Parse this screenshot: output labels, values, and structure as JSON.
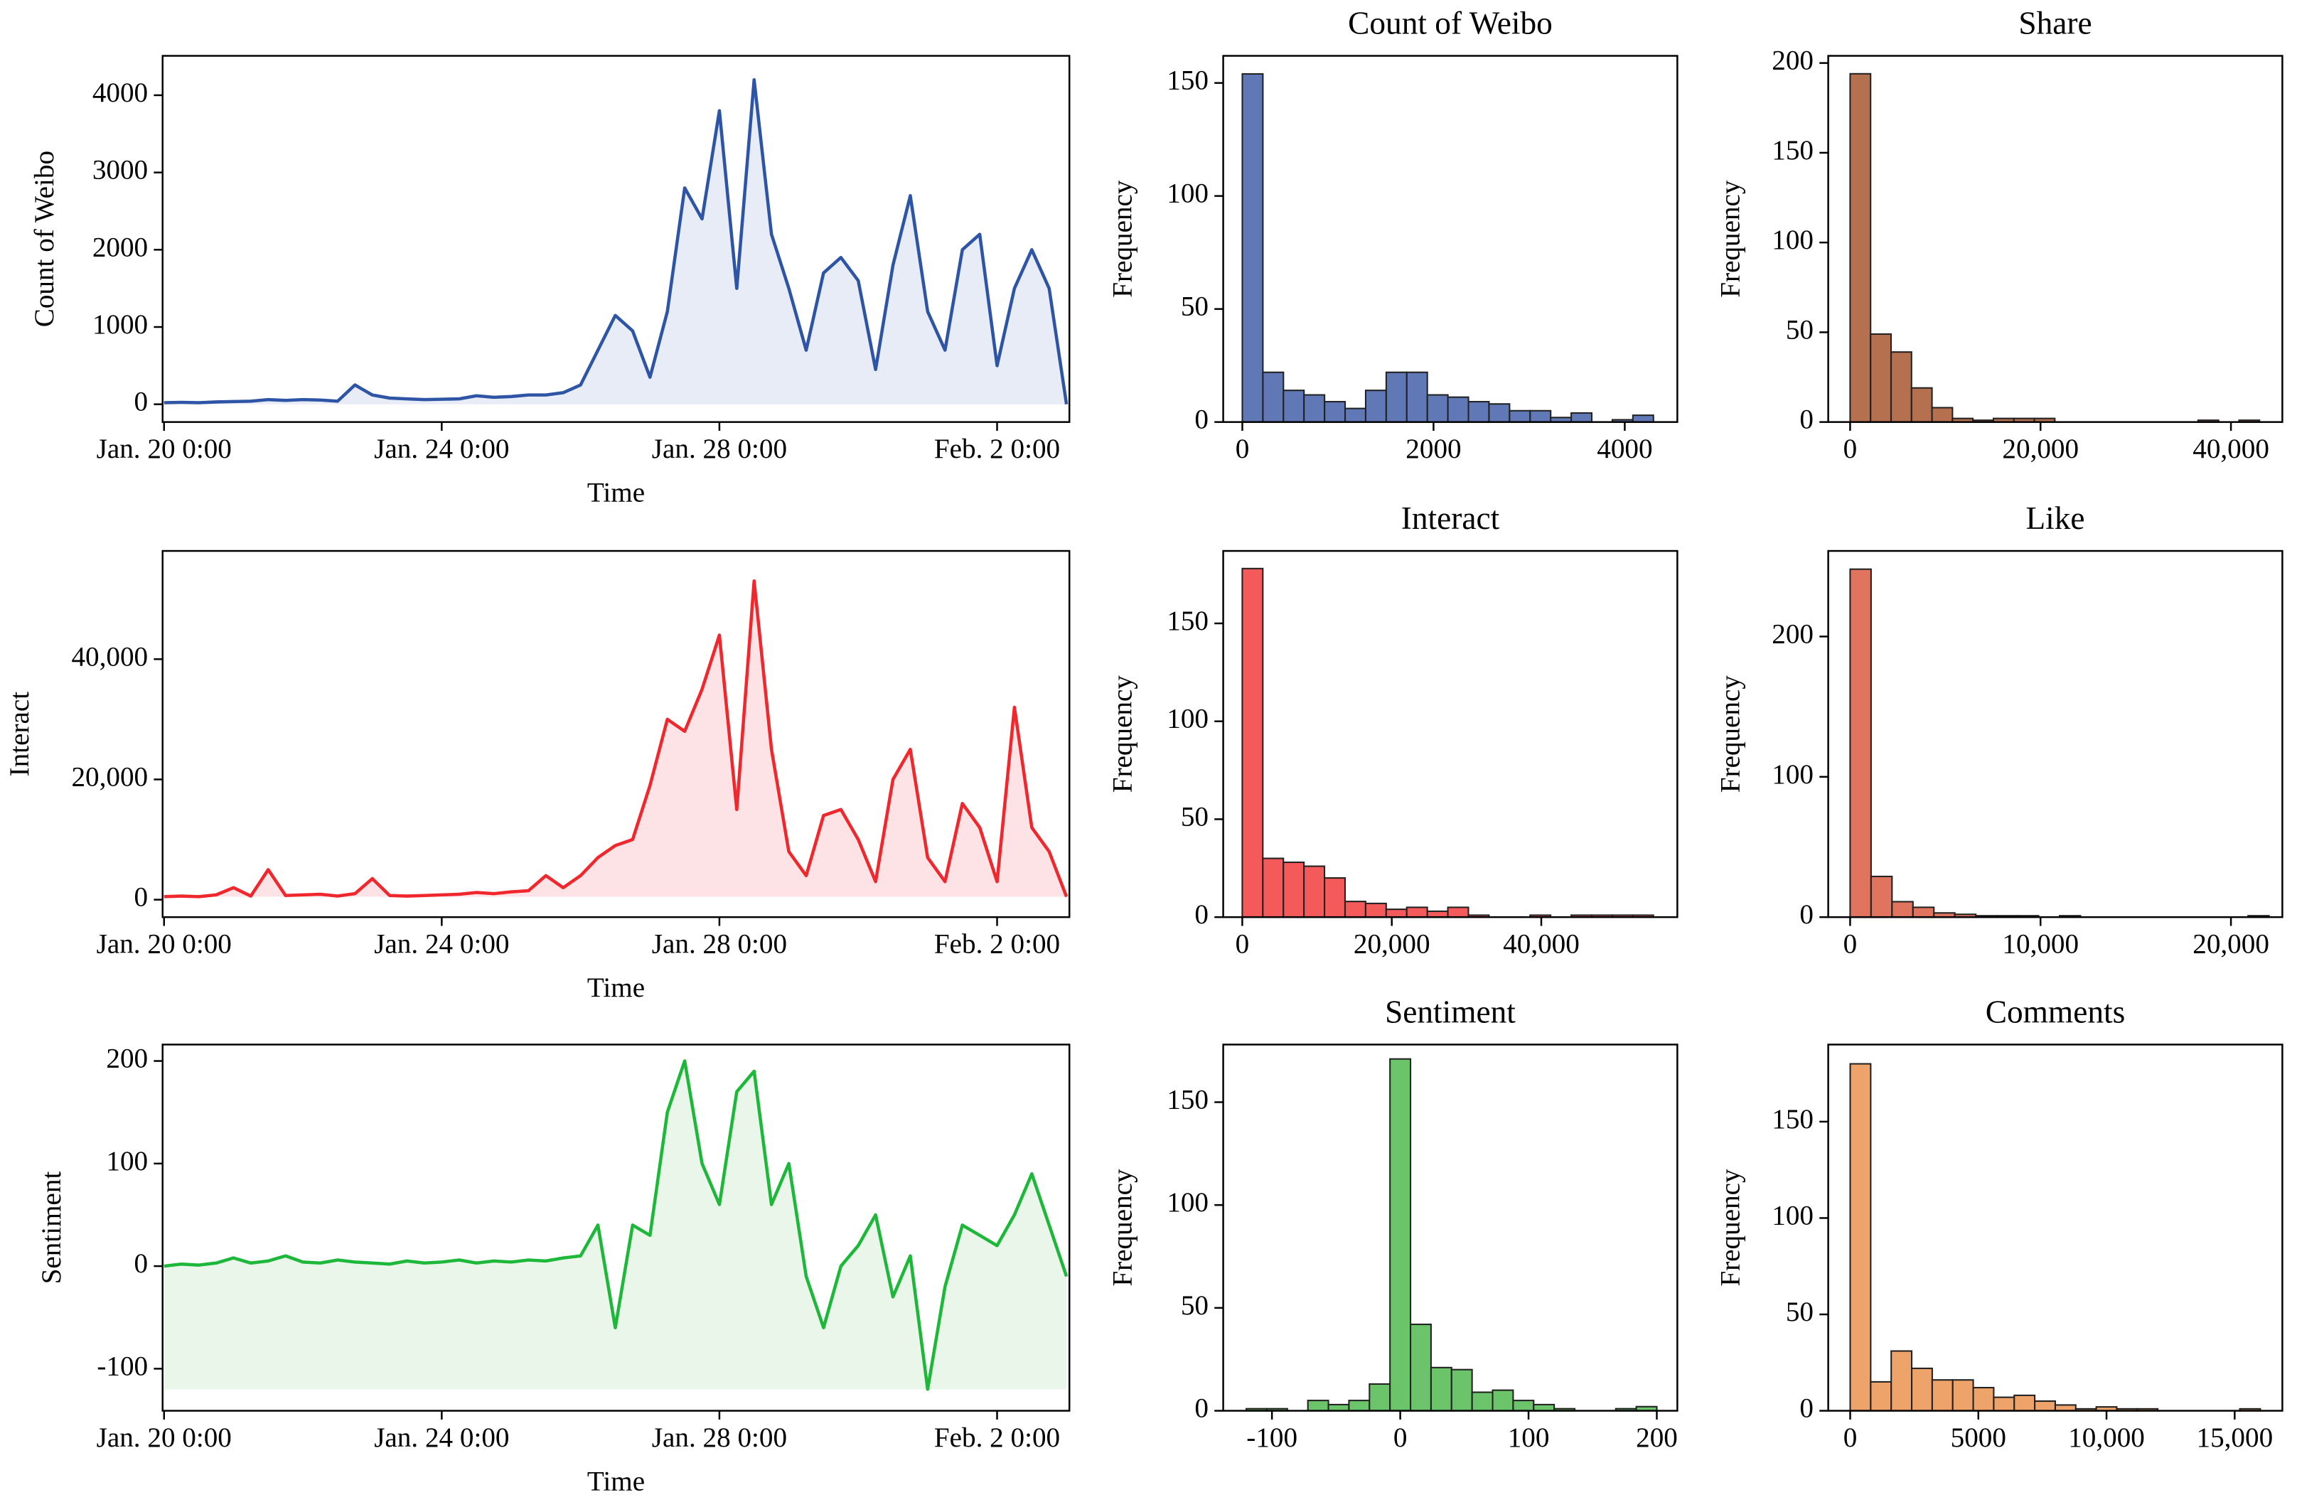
{
  "chart_data": [
    {
      "type": "line",
      "ylabel": "Count of Weibo",
      "xlabel": "Time",
      "color": "#2e55a5",
      "fill_color": "#e8ecf7",
      "x": [
        0,
        6,
        12,
        18,
        24,
        30,
        36,
        42,
        48,
        54,
        60,
        66,
        72,
        78,
        84,
        90,
        96,
        102,
        108,
        114,
        120,
        126,
        132,
        138,
        144,
        150,
        156,
        162,
        168,
        174,
        180,
        186,
        192,
        198,
        204,
        210,
        216,
        222,
        228,
        234,
        240,
        246,
        252,
        258,
        264,
        270,
        276,
        282,
        288,
        294,
        300,
        306,
        312
      ],
      "values": [
        20,
        25,
        20,
        30,
        35,
        40,
        60,
        50,
        60,
        55,
        40,
        250,
        120,
        80,
        70,
        60,
        65,
        70,
        110,
        90,
        100,
        120,
        120,
        150,
        250,
        700,
        1150,
        950,
        350,
        1200,
        2800,
        2400,
        3800,
        1500,
        4200,
        2200,
        1500,
        700,
        1700,
        1900,
        1600,
        450,
        1800,
        2700,
        1200,
        700,
        2000,
        2200,
        500,
        1500,
        2000,
        1500,
        0
      ],
      "xlim": [
        -0.5,
        313
      ],
      "ylim": [
        -230,
        4510
      ],
      "xticks": [
        {
          "value": 0,
          "label": "Jan. 20 0:00"
        },
        {
          "value": 96,
          "label": "Jan. 24 0:00"
        },
        {
          "value": 192,
          "label": "Jan. 28 0:00"
        },
        {
          "value": 288,
          "label": "Feb. 2 0:00"
        }
      ],
      "yticks": [
        0,
        1000,
        2000,
        3000,
        4000
      ]
    },
    {
      "type": "histogram",
      "title": "Count of Weibo",
      "ylabel": "Frequency",
      "color": "#6079b6",
      "edgecolor": "#222",
      "bins": [
        0,
        215,
        430,
        645,
        860,
        1075,
        1290,
        1505,
        1720,
        1935,
        2150,
        2365,
        2580,
        2795,
        3010,
        3225,
        3440,
        3655,
        3870,
        4085,
        4300
      ],
      "values": [
        154,
        22,
        14,
        12,
        9,
        6,
        14,
        22,
        22,
        12,
        11,
        9,
        8,
        5,
        5,
        2,
        4,
        0,
        1,
        3
      ],
      "xlim": [
        -200,
        4550
      ],
      "ylim": [
        0,
        162
      ],
      "xticks": [
        0,
        2000,
        4000
      ],
      "yticks": [
        0,
        50,
        100,
        150
      ]
    },
    {
      "type": "histogram",
      "title": "Share",
      "ylabel": "Frequency",
      "color": "#b5704f",
      "edgecolor": "#222",
      "bins": [
        0,
        2150,
        4300,
        6450,
        8600,
        10750,
        12900,
        15050,
        17200,
        19350,
        21500,
        23650,
        25800,
        27950,
        30100,
        32250,
        34400,
        36550,
        38700,
        40850,
        43000
      ],
      "values": [
        194,
        49,
        39,
        19,
        8,
        2,
        1,
        2,
        2,
        2,
        0,
        0,
        0,
        0,
        0,
        0,
        0,
        1,
        0,
        1
      ],
      "xlim": [
        -2300,
        45400
      ],
      "ylim": [
        0,
        204
      ],
      "xticks": [
        0,
        {
          "value": 20000,
          "label": "20,000"
        },
        {
          "value": 40000,
          "label": "40,000"
        }
      ],
      "yticks": [
        0,
        50,
        100,
        150,
        200
      ]
    },
    {
      "type": "line",
      "ylabel": "Interact",
      "xlabel": "Time",
      "color": "#f0282d",
      "fill_color": "#fde3e5",
      "x": [
        0,
        6,
        12,
        18,
        24,
        30,
        36,
        42,
        48,
        54,
        60,
        66,
        72,
        78,
        84,
        90,
        96,
        102,
        108,
        114,
        120,
        126,
        132,
        138,
        144,
        150,
        156,
        162,
        168,
        174,
        180,
        186,
        192,
        198,
        204,
        210,
        216,
        222,
        228,
        234,
        240,
        246,
        252,
        258,
        264,
        270,
        276,
        282,
        288,
        294,
        300,
        306,
        312
      ],
      "values": [
        500,
        600,
        500,
        800,
        2000,
        600,
        5000,
        700,
        800,
        900,
        600,
        1000,
        3500,
        700,
        600,
        700,
        800,
        900,
        1200,
        1000,
        1300,
        1500,
        4000,
        2000,
        4000,
        7000,
        9000,
        10000,
        19000,
        30000,
        28000,
        35000,
        44000,
        15000,
        53000,
        25000,
        8000,
        4000,
        14000,
        15000,
        10000,
        3000,
        20000,
        25000,
        7000,
        3000,
        16000,
        12000,
        3000,
        32000,
        12000,
        8000,
        500
      ],
      "xlim": [
        -0.5,
        313
      ],
      "ylim": [
        -2900,
        58000
      ],
      "xticks": [
        {
          "value": 0,
          "label": "Jan. 20 0:00"
        },
        {
          "value": 96,
          "label": "Jan. 24 0:00"
        },
        {
          "value": 192,
          "label": "Jan. 28 0:00"
        },
        {
          "value": 288,
          "label": "Feb. 2 0:00"
        }
      ],
      "yticks": [
        0,
        {
          "value": 20000,
          "label": "20,000"
        },
        {
          "value": 40000,
          "label": "40,000"
        }
      ]
    },
    {
      "type": "histogram",
      "title": "Interact",
      "ylabel": "Frequency",
      "color": "#f45a5a",
      "edgecolor": "#222",
      "bins": [
        0,
        2750,
        5500,
        8250,
        11000,
        13750,
        16500,
        19250,
        22000,
        24750,
        27500,
        30250,
        33000,
        35750,
        38500,
        41250,
        44000,
        46750,
        49500,
        52250,
        55000
      ],
      "values": [
        178,
        30,
        28,
        26,
        20,
        8,
        7,
        4,
        5,
        3,
        5,
        1,
        0,
        0,
        1,
        0,
        1,
        1,
        1,
        1
      ],
      "xlim": [
        -2550,
        58200
      ],
      "ylim": [
        0,
        187
      ],
      "xticks": [
        0,
        {
          "value": 20000,
          "label": "20,000"
        },
        {
          "value": 40000,
          "label": "40,000"
        }
      ],
      "yticks": [
        0,
        50,
        100,
        150
      ]
    },
    {
      "type": "histogram",
      "title": "Like",
      "ylabel": "Frequency",
      "color": "#e0745e",
      "edgecolor": "#222",
      "bins": [
        0,
        1100,
        2200,
        3300,
        4400,
        5500,
        6600,
        7700,
        8800,
        9900,
        11000,
        12100,
        13200,
        14300,
        15400,
        16500,
        17600,
        18700,
        19800,
        20900,
        22000
      ],
      "values": [
        248,
        29,
        11,
        7,
        3,
        2,
        1,
        1,
        1,
        0,
        1,
        0,
        0,
        0,
        0,
        0,
        0,
        0,
        0,
        1
      ],
      "xlim": [
        -1150,
        22700
      ],
      "ylim": [
        0,
        261
      ],
      "xticks": [
        0,
        {
          "value": 10000,
          "label": "10,000"
        },
        {
          "value": 20000,
          "label": "20,000"
        }
      ],
      "yticks": [
        0,
        100,
        200
      ]
    },
    {
      "type": "line",
      "ylabel": "Sentiment",
      "xlabel": "Time",
      "color": "#1db83a",
      "fill_color": "#eaf6ea",
      "x": [
        0,
        6,
        12,
        18,
        24,
        30,
        36,
        42,
        48,
        54,
        60,
        66,
        72,
        78,
        84,
        90,
        96,
        102,
        108,
        114,
        120,
        126,
        132,
        138,
        144,
        150,
        156,
        162,
        168,
        174,
        180,
        186,
        192,
        198,
        204,
        210,
        216,
        222,
        228,
        234,
        240,
        246,
        252,
        258,
        264,
        270,
        276,
        282,
        288,
        294,
        300,
        306,
        312
      ],
      "values": [
        0,
        2,
        1,
        3,
        8,
        3,
        5,
        10,
        4,
        3,
        6,
        4,
        3,
        2,
        5,
        3,
        4,
        6,
        3,
        5,
        4,
        6,
        5,
        8,
        10,
        40,
        -60,
        40,
        30,
        150,
        200,
        100,
        60,
        170,
        190,
        60,
        100,
        -10,
        -60,
        0,
        20,
        50,
        -30,
        10,
        -120,
        -20,
        40,
        30,
        20,
        50,
        90,
        40,
        -10
      ],
      "xlim": [
        -0.5,
        313
      ],
      "ylim": [
        -141,
        216
      ],
      "xticks": [
        {
          "value": 0,
          "label": "Jan. 20 0:00"
        },
        {
          "value": 96,
          "label": "Jan. 24 0:00"
        },
        {
          "value": 192,
          "label": "Jan. 28 0:00"
        },
        {
          "value": 288,
          "label": "Feb. 2 0:00"
        }
      ],
      "yticks": [
        -100,
        0,
        100,
        200
      ]
    },
    {
      "type": "histogram",
      "title": "Sentiment",
      "ylabel": "Frequency",
      "color": "#6cc46a",
      "edgecolor": "#222",
      "bins": [
        -120,
        -104,
        -88,
        -72,
        -56,
        -40,
        -24,
        -8,
        8,
        24,
        40,
        56,
        72,
        88,
        104,
        120,
        136,
        152,
        168,
        184,
        200
      ],
      "values": [
        1,
        1,
        0,
        5,
        3,
        5,
        13,
        171,
        42,
        21,
        20,
        9,
        10,
        5,
        3,
        1,
        0,
        0,
        1,
        2
      ],
      "xlim": [
        -138,
        216
      ],
      "ylim": [
        0,
        178
      ],
      "xticks": [
        -100,
        0,
        100,
        200
      ],
      "yticks": [
        0,
        50,
        100,
        150
      ]
    },
    {
      "type": "histogram",
      "title": "Comments",
      "ylabel": "Frequency",
      "color": "#eda36a",
      "edgecolor": "#222",
      "bins": [
        0,
        800,
        1600,
        2400,
        3200,
        4000,
        4800,
        5600,
        6400,
        7200,
        8000,
        8800,
        9600,
        10400,
        11200,
        12000,
        12800,
        13600,
        14400,
        15200,
        16000
      ],
      "values": [
        180,
        15,
        31,
        22,
        16,
        16,
        12,
        7,
        8,
        5,
        3,
        1,
        2,
        1,
        1,
        0,
        0,
        0,
        0,
        1
      ],
      "xlim": [
        -857,
        16860
      ],
      "ylim": [
        0,
        190
      ],
      "xticks": [
        0,
        5000,
        {
          "value": 10000,
          "label": "10,000"
        },
        {
          "value": 15000,
          "label": "15,000"
        }
      ],
      "yticks": [
        0,
        50,
        100,
        150
      ]
    }
  ]
}
